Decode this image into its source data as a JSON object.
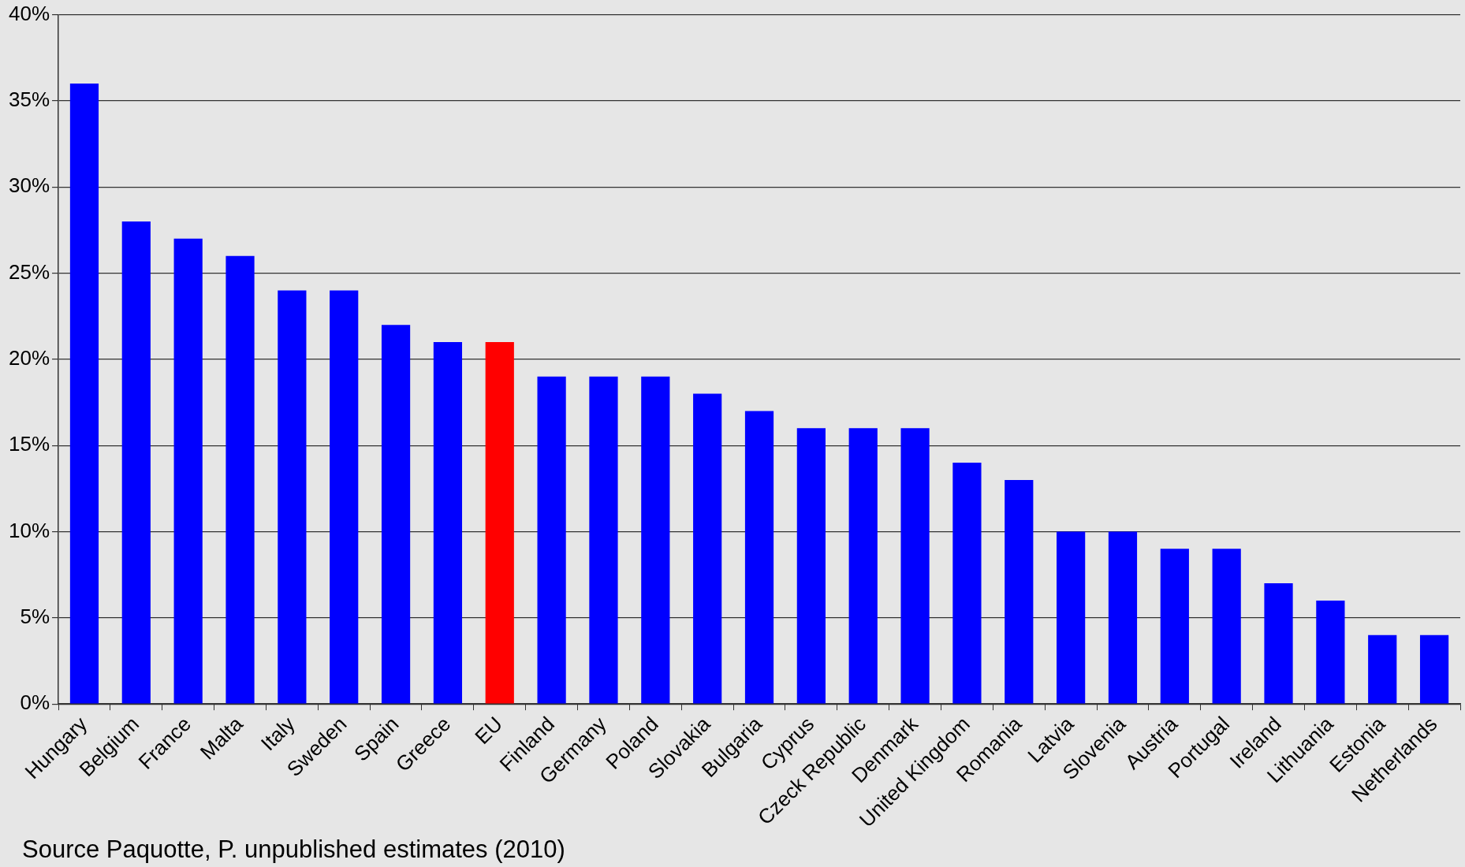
{
  "chart_data": {
    "type": "bar",
    "categories": [
      "Hungary",
      "Belgium",
      "France",
      "Malta",
      "Italy",
      "Sweden",
      "Spain",
      "Greece",
      "EU",
      "Finland",
      "Germany",
      "Poland",
      "Slovakia",
      "Bulgaria",
      "Cyprus",
      "Czeck Republic",
      "Denmark",
      "United Kingdom",
      "Romania",
      "Latvia",
      "Slovenia",
      "Austria",
      "Portugal",
      "Ireland",
      "Lithuania",
      "Estonia",
      "Netherlands"
    ],
    "values": [
      36,
      28,
      27,
      26,
      24,
      24,
      22,
      21,
      21,
      19,
      19,
      19,
      18,
      17,
      16,
      16,
      16,
      14,
      13,
      10,
      10,
      9,
      9,
      7,
      6,
      4,
      4
    ],
    "colors": [
      "#0000ff",
      "#0000ff",
      "#0000ff",
      "#0000ff",
      "#0000ff",
      "#0000ff",
      "#0000ff",
      "#0000ff",
      "#ff0000",
      "#0000ff",
      "#0000ff",
      "#0000ff",
      "#0000ff",
      "#0000ff",
      "#0000ff",
      "#0000ff",
      "#0000ff",
      "#0000ff",
      "#0000ff",
      "#0000ff",
      "#0000ff",
      "#0000ff",
      "#0000ff",
      "#0000ff",
      "#0000ff",
      "#0000ff",
      "#0000ff"
    ],
    "ylim": [
      0,
      40
    ],
    "yticks": [
      {
        "value": 0,
        "label": "0%"
      },
      {
        "value": 5,
        "label": "5%"
      },
      {
        "value": 10,
        "label": "10%"
      },
      {
        "value": 15,
        "label": "15%"
      },
      {
        "value": 20,
        "label": "20%"
      },
      {
        "value": 25,
        "label": "25%"
      },
      {
        "value": 30,
        "label": "30%"
      },
      {
        "value": 35,
        "label": "35%"
      },
      {
        "value": 40,
        "label": "40%"
      }
    ],
    "grid": "y",
    "legend": false,
    "annotations": [
      "Source Paquotte, P. unpublished estimates (2010)"
    ]
  }
}
